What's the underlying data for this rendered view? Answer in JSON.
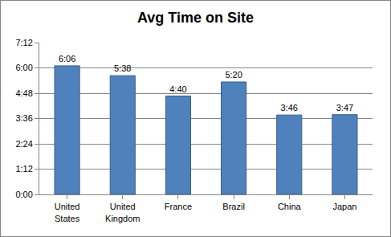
{
  "chart_data": {
    "type": "bar",
    "title": "Avg Time on Site",
    "categories": [
      "United States",
      "United Kingdom",
      "France",
      "Brazil",
      "China",
      "Japan"
    ],
    "values": [
      366,
      338,
      280,
      320,
      226,
      227
    ],
    "value_labels": [
      "6:06",
      "5:38",
      "4:40",
      "5:20",
      "3:46",
      "3:47"
    ],
    "color": "#4f81bd",
    "ylim": [
      0,
      432
    ],
    "yticks": [
      {
        "value": 0,
        "label": "0:00"
      },
      {
        "value": 72,
        "label": "1:12"
      },
      {
        "value": 144,
        "label": "2:24"
      },
      {
        "value": 216,
        "label": "3:36"
      },
      {
        "value": 288,
        "label": "4:48"
      },
      {
        "value": 360,
        "label": "6:00"
      },
      {
        "value": 432,
        "label": "7:12"
      }
    ],
    "grid": true,
    "data_labels": true
  }
}
